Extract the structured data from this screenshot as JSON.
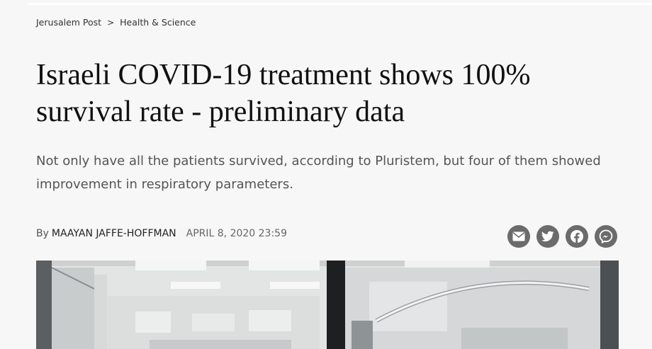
{
  "breadcrumb": {
    "home": "Jerusalem Post",
    "separator": ">",
    "section": "Health & Science"
  },
  "article": {
    "headline": "Israeli COVID-19 treatment shows 100% survival rate - preliminary data",
    "subheadline": "Not only have all the patients survived, according to Pluristem, but four of them showed improvement in respiratory parameters.",
    "byline_prefix": "By",
    "author": "MAAYAN JAFFE-HOFFMAN",
    "date": "APRIL 8, 2020 23:59"
  },
  "share": {
    "icons": [
      "email-icon",
      "twitter-icon",
      "facebook-icon",
      "messenger-icon"
    ],
    "button_color": "#6b6b6b"
  }
}
